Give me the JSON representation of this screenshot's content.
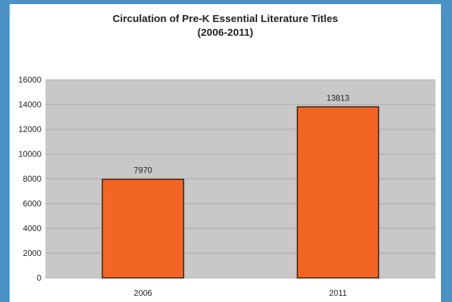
{
  "colors": {
    "frame": "#4a93c4",
    "background": "#ffffff",
    "plot_area": "#c8c8c8",
    "gridline": "#a9a9a9",
    "bar_fill": "#f26522",
    "bar_stroke": "#2b1a10",
    "text": "#222222"
  },
  "chart_data": {
    "type": "bar",
    "title": "Circulation of Pre-K Essential Literature Titles",
    "subtitle": "(2006-2011)",
    "categories": [
      "2006",
      "2011"
    ],
    "values": [
      7970,
      13813
    ],
    "data_labels": [
      "7970",
      "13813"
    ],
    "xlabel": "",
    "ylabel": "",
    "ylim": [
      0,
      16000
    ],
    "yticks": [
      0,
      2000,
      4000,
      6000,
      8000,
      10000,
      12000,
      14000,
      16000
    ],
    "ytick_labels": [
      "0",
      "2000",
      "4000",
      "6000",
      "8000",
      "10000",
      "12000",
      "14000",
      "16000"
    ],
    "grid": true,
    "legend": "none"
  }
}
